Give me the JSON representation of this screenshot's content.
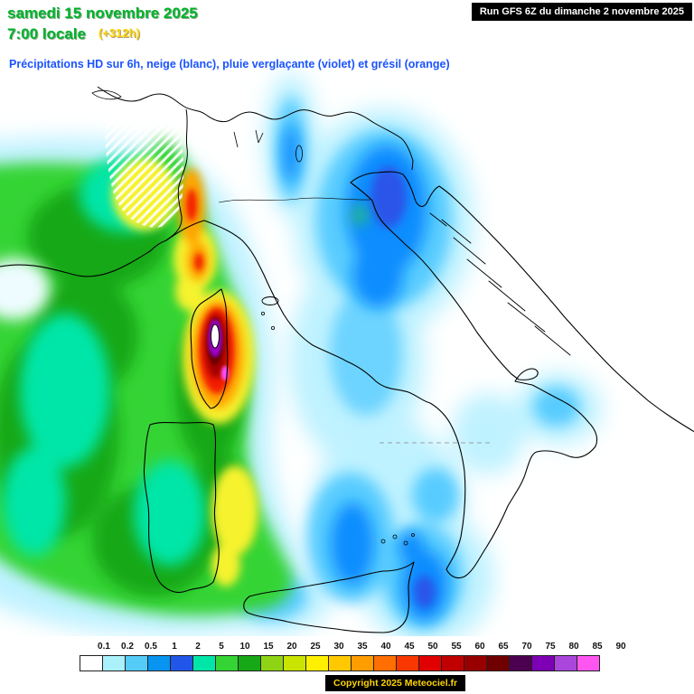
{
  "header": {
    "date_line": "samedi 15 novembre 2025",
    "time_line": "7:00 locale",
    "offset": "(+312h)",
    "subtitle": "Précipitations HD sur 6h, neige (blanc), pluie verglaçante (violet) et grésil (orange)"
  },
  "run_box": {
    "text": "Run GFS 6Z du dimanche 2 novembre 2025"
  },
  "legend": {
    "title": "precipitation-scale-mm",
    "values": [
      "0.1",
      "0.2",
      "0.5",
      "1",
      "2",
      "5",
      "10",
      "15",
      "20",
      "25",
      "30",
      "35",
      "40",
      "45",
      "50",
      "55",
      "60",
      "65",
      "70",
      "75",
      "80",
      "85",
      "90"
    ],
    "colors": [
      "#ffffff",
      "#abf1fc",
      "#55ccf7",
      "#0894f0",
      "#2157e8",
      "#00e6a8",
      "#35d435",
      "#17a817",
      "#8fd414",
      "#c8e400",
      "#fff000",
      "#ffc800",
      "#ff9c00",
      "#ff6e00",
      "#f83800",
      "#e00000",
      "#c00000",
      "#980000",
      "#700000",
      "#4c0050",
      "#7d00b4",
      "#aa46dc",
      "#ff55f0"
    ]
  },
  "footer": {
    "copyright": "Copyright 2025 Meteociel.fr"
  },
  "theme": {
    "date_color": "#00b32b",
    "offset_color": "#ffd400",
    "subtitle_color": "#1a53ff",
    "run_bg": "#000000",
    "run_fg": "#ffffff",
    "copyright_color": "#ffd400",
    "label_color": "#111111"
  }
}
